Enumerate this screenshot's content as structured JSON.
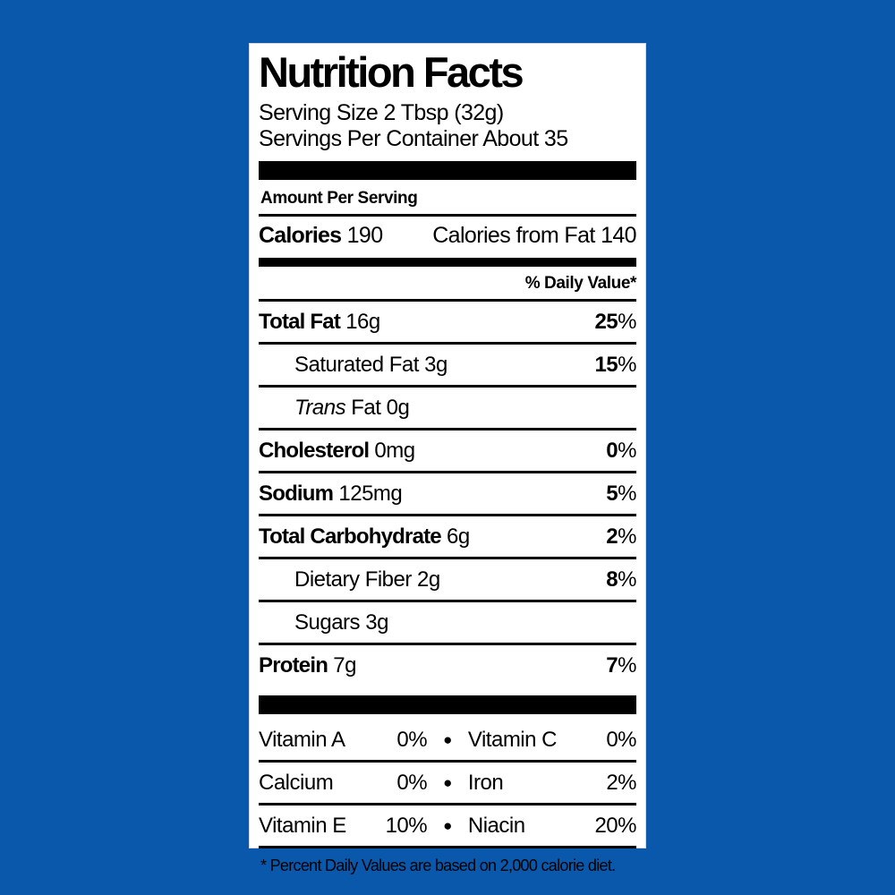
{
  "background_color": "#0A58AC",
  "label": {
    "title": "Nutrition Facts",
    "serving_size": "Serving Size 2 Tbsp (32g)",
    "servings_per_container": "Servings Per Container About 35",
    "amount_per_serving": "Amount Per Serving",
    "calories": {
      "label": "Calories",
      "value": "190",
      "from_fat": "Calories from Fat 140"
    },
    "daily_value_header": "% Daily Value*",
    "rows": [
      {
        "label": "Total Fat",
        "value": "16g",
        "dv_value": "25",
        "dv_unit": "%"
      },
      {
        "label": "Saturated Fat",
        "value": "3g",
        "dv_value": "15",
        "dv_unit": "%"
      },
      {
        "label_italic": "Trans",
        "label": "Fat",
        "value": "0g",
        "dv_value": "",
        "dv_unit": ""
      },
      {
        "label": "Cholesterol",
        "value": "0mg",
        "dv_value": "0",
        "dv_unit": "%"
      },
      {
        "label": "Sodium",
        "value": "125mg",
        "dv_value": "5",
        "dv_unit": "%"
      },
      {
        "label": "Total Carbohydrate",
        "value": "6g",
        "dv_value": "2",
        "dv_unit": "%"
      },
      {
        "label": "Dietary Fiber",
        "value": "2g",
        "dv_value": "8",
        "dv_unit": "%"
      },
      {
        "label": "Sugars",
        "value": "3g",
        "dv_value": "",
        "dv_unit": ""
      },
      {
        "label": "Protein",
        "value": "7g",
        "dv_value": "7",
        "dv_unit": "%"
      }
    ],
    "bullet": "●",
    "micronutrients": [
      {
        "left_label": "Vitamin A",
        "left_value": "0%",
        "right_label": "Vitamin C",
        "right_value": "0%"
      },
      {
        "left_label": "Calcium",
        "left_value": "0%",
        "right_label": "Iron",
        "right_value": "2%"
      },
      {
        "left_label": "Vitamin E",
        "left_value": "10%",
        "right_label": "Niacin",
        "right_value": "20%"
      }
    ],
    "footnote": "* Percent Daily Values are based on 2,000 calorie diet."
  }
}
